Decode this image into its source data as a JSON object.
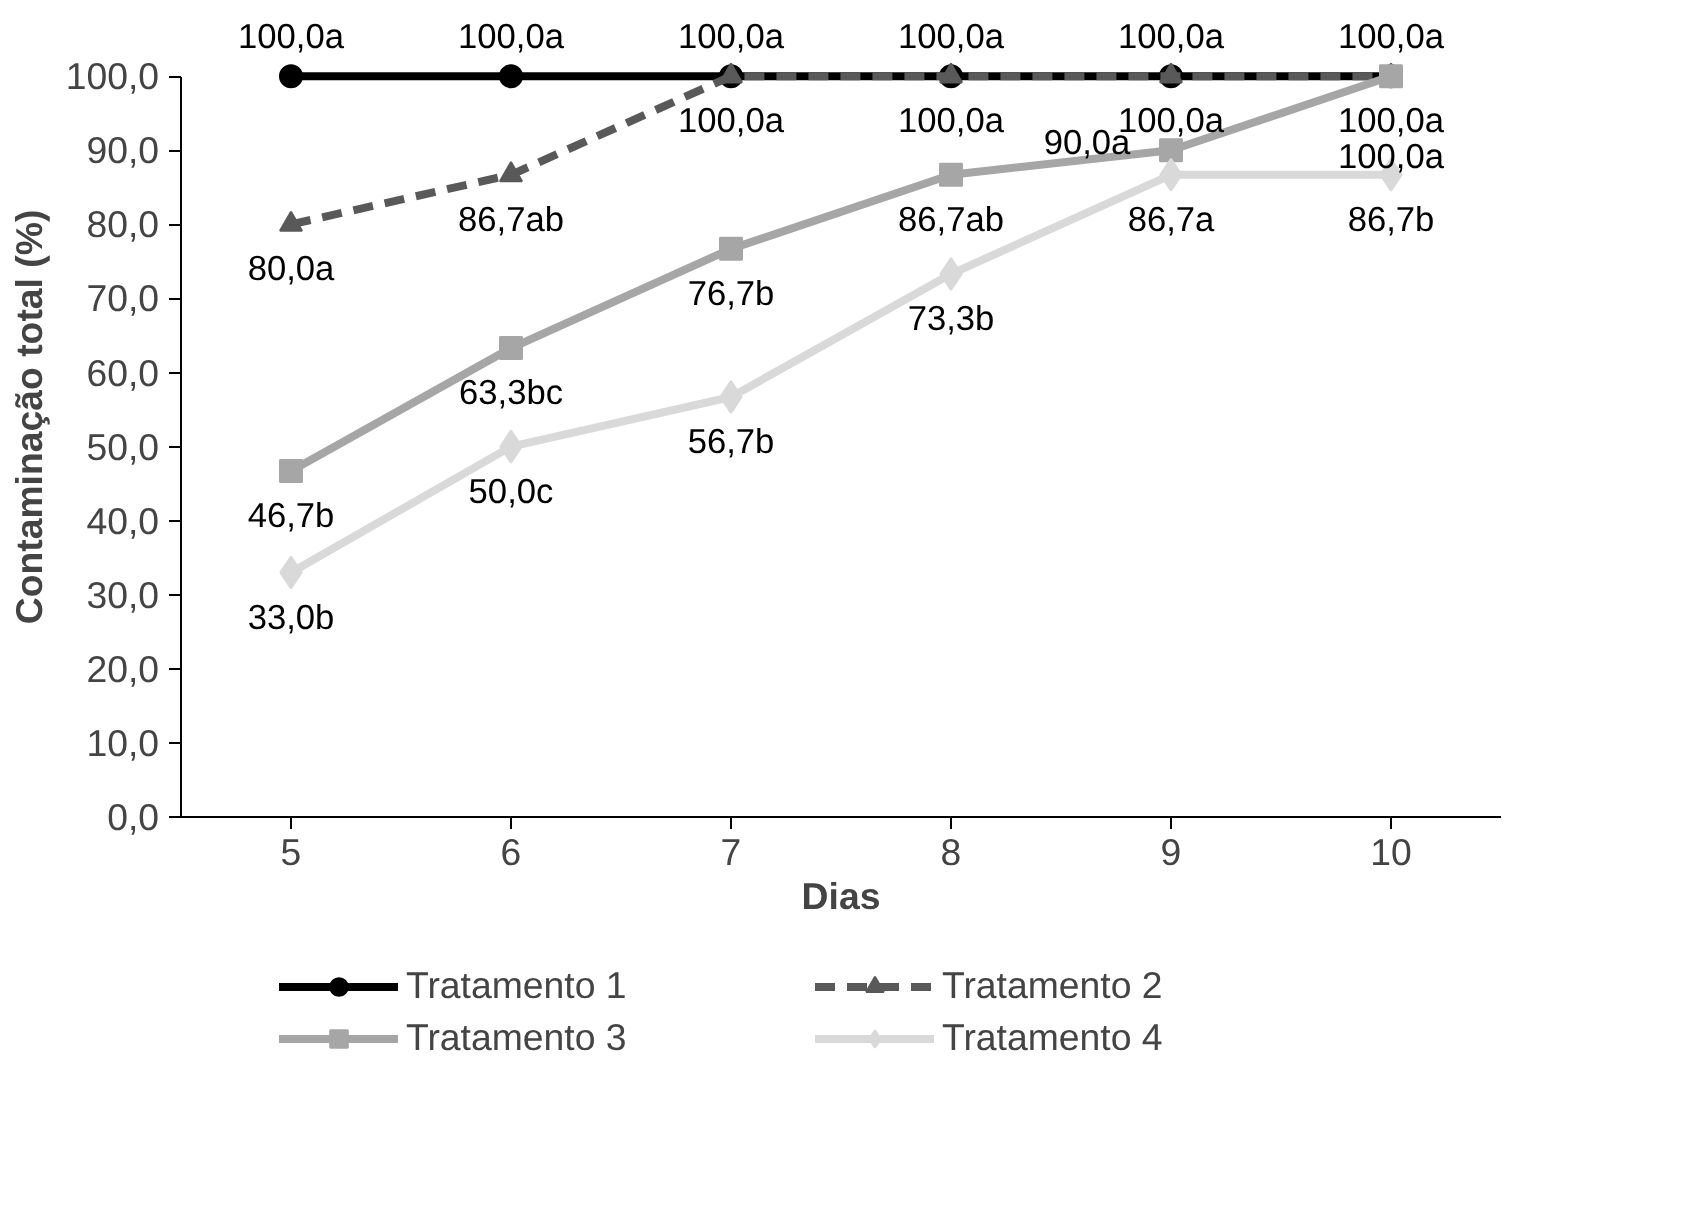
{
  "chart_data": {
    "type": "line",
    "xlabel": "Dias",
    "ylabel": "Contaminação total (%)",
    "categories": [
      "5",
      "6",
      "7",
      "8",
      "9",
      "10"
    ],
    "ylim": [
      0,
      100
    ],
    "yticks": [
      {
        "value": 0,
        "label": "0,0"
      },
      {
        "value": 10,
        "label": "10,0"
      },
      {
        "value": 20,
        "label": "20,0"
      },
      {
        "value": 30,
        "label": "30,0"
      },
      {
        "value": 40,
        "label": "40,0"
      },
      {
        "value": 50,
        "label": "50,0"
      },
      {
        "value": 60,
        "label": "60,0"
      },
      {
        "value": 70,
        "label": "70,0"
      },
      {
        "value": 80,
        "label": "80,0"
      },
      {
        "value": 90,
        "label": "90,0"
      },
      {
        "value": 100,
        "label": "100,0"
      }
    ],
    "grid": false,
    "legend": "bottom",
    "series": [
      {
        "name": "Tratamento 1",
        "color": "#000000",
        "marker": "circle",
        "line_style": "solid",
        "values": [
          100,
          100,
          100,
          100,
          100,
          100
        ],
        "value_labels": [
          "100,0a",
          "100,0a",
          "100,0a",
          "100,0a",
          "100,0a",
          "100,0a"
        ]
      },
      {
        "name": "Tratamento 2",
        "color": "#595959",
        "marker": "triangle",
        "line_style": "dashed",
        "values": [
          80,
          86.7,
          100,
          100,
          100,
          100
        ],
        "value_labels": [
          "80,0a",
          "86,7ab",
          "100,0a",
          "100,0a",
          "100,0a",
          "100,0a"
        ]
      },
      {
        "name": "Tratamento 3",
        "color": "#a6a6a6",
        "marker": "square",
        "line_style": "solid",
        "values": [
          46.7,
          63.3,
          76.7,
          86.7,
          90,
          100
        ],
        "value_labels": [
          "46,7b",
          "63,3bc",
          "76,7b",
          "86,7ab",
          "90,0a",
          "100,0a"
        ]
      },
      {
        "name": "Tratamento 4",
        "color": "#d9d9d9",
        "marker": "diamond",
        "line_style": "solid",
        "values": [
          33,
          50,
          56.7,
          73.3,
          86.7,
          86.7
        ],
        "value_labels": [
          "33,0b",
          "50,0c",
          "56,7b",
          "73,3b",
          "86,7a",
          "86,7b"
        ]
      }
    ]
  }
}
